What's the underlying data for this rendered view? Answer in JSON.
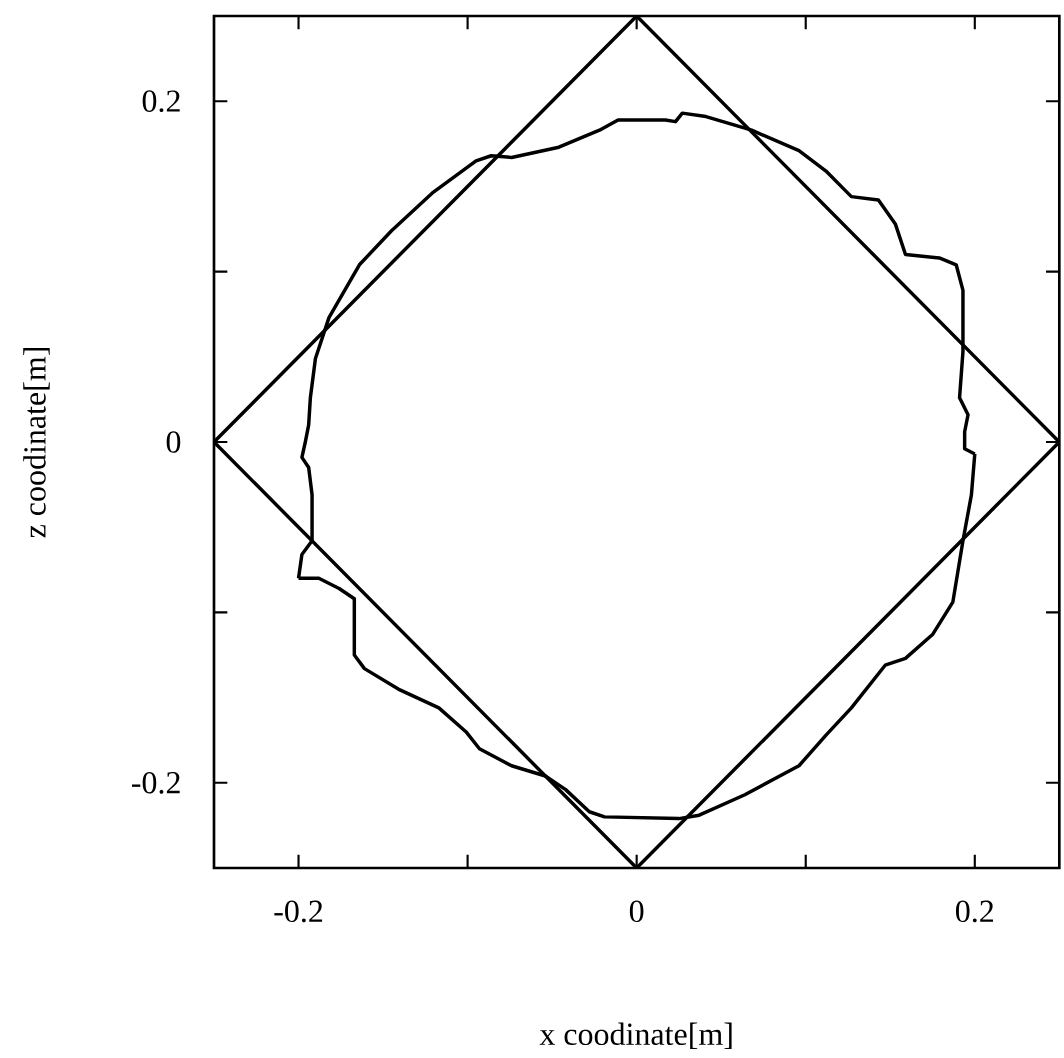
{
  "chart_data": {
    "type": "line",
    "xlabel": "x coodinate[m]",
    "ylabel": "z coodinate[m]",
    "xlim": [
      -0.25,
      0.25
    ],
    "ylim": [
      -0.25,
      0.25
    ],
    "xticks": [
      -0.2,
      {
        "value": -0.1,
        "label": null
      },
      0,
      {
        "value": 0.1,
        "label": null
      },
      0.2
    ],
    "yticks": [
      -0.2,
      {
        "value": -0.1,
        "label": null
      },
      0,
      {
        "value": 0.1,
        "label": null
      },
      0.2
    ],
    "series": [
      {
        "color": "#000000",
        "x": [
          -0.25,
          0,
          0.25
        ],
        "values": [
          0,
          0.25,
          0
        ]
      },
      {
        "color": "#000000",
        "x": [
          -0.25,
          0,
          0.25
        ],
        "values": [
          0,
          -0.25,
          0
        ]
      },
      {
        "color": "#000000",
        "x": [
          -0.2,
          -0.198,
          -0.192,
          -0.192,
          -0.194,
          -0.198,
          -0.196,
          -0.194,
          -0.193,
          -0.19,
          -0.182,
          -0.164,
          -0.145,
          -0.121,
          -0.095,
          -0.086,
          -0.074,
          -0.046,
          -0.022,
          -0.011,
          0.017,
          0.023,
          0.027,
          0.041,
          0.068,
          0.096,
          0.112,
          0.122,
          0.127,
          0.143,
          0.153,
          0.159,
          0.179,
          0.189,
          0.193,
          0.193,
          0.191,
          0.196,
          0.194,
          0.194,
          0.194,
          0.2
        ],
        "values": [
          -0.08,
          -0.066,
          -0.058,
          -0.031,
          -0.015,
          -0.009,
          0.0,
          0.01,
          0.026,
          0.049,
          0.073,
          0.104,
          0.124,
          0.146,
          0.165,
          0.168,
          0.167,
          0.173,
          0.183,
          0.189,
          0.189,
          0.188,
          0.193,
          0.191,
          0.183,
          0.171,
          0.159,
          0.149,
          0.144,
          0.142,
          0.128,
          0.11,
          0.108,
          0.104,
          0.089,
          0.053,
          0.026,
          0.016,
          0.006,
          0.004,
          -0.004,
          -0.007
        ]
      },
      {
        "color": "#000000",
        "x": [
          -0.2,
          -0.188,
          -0.176,
          -0.167,
          -0.167,
          -0.161,
          -0.141,
          -0.117,
          -0.101,
          -0.093,
          -0.074,
          -0.054,
          -0.042,
          -0.028,
          -0.019,
          0.025,
          0.037,
          0.064,
          0.096,
          0.112,
          0.127,
          0.147,
          0.159,
          0.175,
          0.187,
          0.193,
          0.198,
          0.2
        ],
        "values": [
          -0.08,
          -0.08,
          -0.086,
          -0.092,
          -0.125,
          -0.133,
          -0.145,
          -0.156,
          -0.17,
          -0.18,
          -0.19,
          -0.196,
          -0.204,
          -0.217,
          -0.22,
          -0.221,
          -0.219,
          -0.207,
          -0.19,
          -0.172,
          -0.156,
          -0.131,
          -0.127,
          -0.113,
          -0.094,
          -0.058,
          -0.031,
          -0.007
        ]
      }
    ]
  }
}
